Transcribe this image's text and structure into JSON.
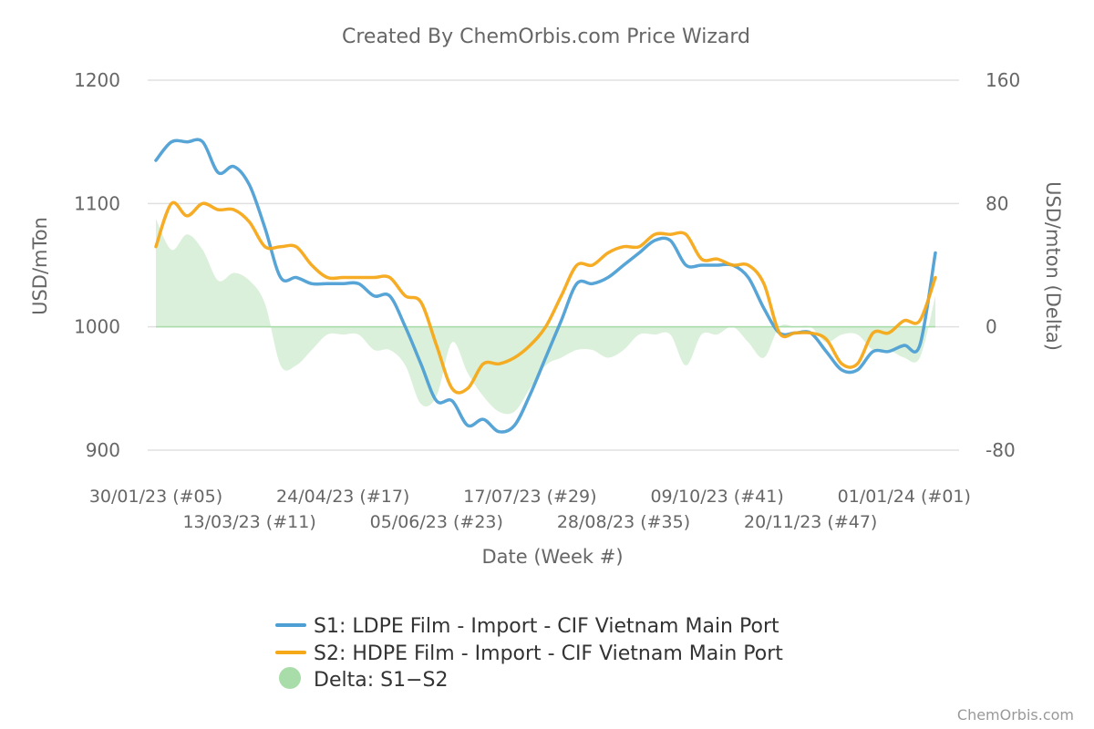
{
  "chart_data": {
    "type": "line",
    "title": "Created By ChemOrbis.com Price Wizard",
    "xlabel": "Date (Week #)",
    "ylabel": "USD/mTon",
    "y2label": "USD/mton (Delta)",
    "ylim": [
      900,
      1200
    ],
    "y2lim": [
      -80,
      160
    ],
    "yticks": [
      "900",
      "1000",
      "1100",
      "1200"
    ],
    "y2ticks": [
      "-80",
      "0",
      "80",
      "160"
    ],
    "x_tick_labels": [
      "30/01/23 (#05)",
      "13/03/23 (#11)",
      "24/04/23 (#17)",
      "05/06/23 (#23)",
      "17/07/23 (#29)",
      "28/08/23 (#35)",
      "09/10/23 (#41)",
      "20/11/23 (#47)",
      "01/01/24 (#01)"
    ],
    "week_count": 50,
    "series": [
      {
        "name": "S1: LDPE Film - Import - CIF Vietnam Main Port",
        "color": "#4e9fd4",
        "values": [
          1135,
          1150,
          1150,
          1150,
          1125,
          1130,
          1115,
          1080,
          1040,
          1040,
          1035,
          1035,
          1035,
          1035,
          1025,
          1025,
          1000,
          970,
          940,
          940,
          920,
          925,
          915,
          920,
          945,
          975,
          1005,
          1035,
          1035,
          1040,
          1050,
          1060,
          1070,
          1070,
          1050,
          1050,
          1050,
          1050,
          1040,
          1015,
          995,
          995,
          995,
          980,
          965,
          965,
          980,
          980,
          985,
          985,
          1060
        ]
      },
      {
        "name": "S2: HDPE Film - Import - CIF Vietnam Main Port",
        "color": "#f5a818",
        "values": [
          1065,
          1100,
          1090,
          1100,
          1095,
          1095,
          1085,
          1065,
          1065,
          1065,
          1050,
          1040,
          1040,
          1040,
          1040,
          1040,
          1025,
          1020,
          985,
          950,
          950,
          970,
          970,
          975,
          985,
          1000,
          1025,
          1050,
          1050,
          1060,
          1065,
          1065,
          1075,
          1075,
          1075,
          1055,
          1055,
          1050,
          1050,
          1035,
          995,
          995,
          995,
          990,
          970,
          970,
          995,
          995,
          1005,
          1005,
          1040
        ]
      },
      {
        "name": "Delta: S1−S2",
        "color": "#a8dca8",
        "type": "area",
        "values": [
          70,
          50,
          60,
          50,
          30,
          35,
          30,
          15,
          -25,
          -25,
          -15,
          -5,
          -5,
          -5,
          -15,
          -15,
          -25,
          -50,
          -45,
          -10,
          -30,
          -45,
          -55,
          -55,
          -40,
          -25,
          -20,
          -15,
          -15,
          -20,
          -15,
          -5,
          -5,
          -5,
          -25,
          -5,
          -5,
          0,
          -10,
          -20,
          0,
          0,
          0,
          -10,
          -5,
          -5,
          -15,
          -15,
          -20,
          -20,
          20
        ]
      }
    ],
    "legend_position": "bottom",
    "credit": "ChemOrbis.com"
  }
}
